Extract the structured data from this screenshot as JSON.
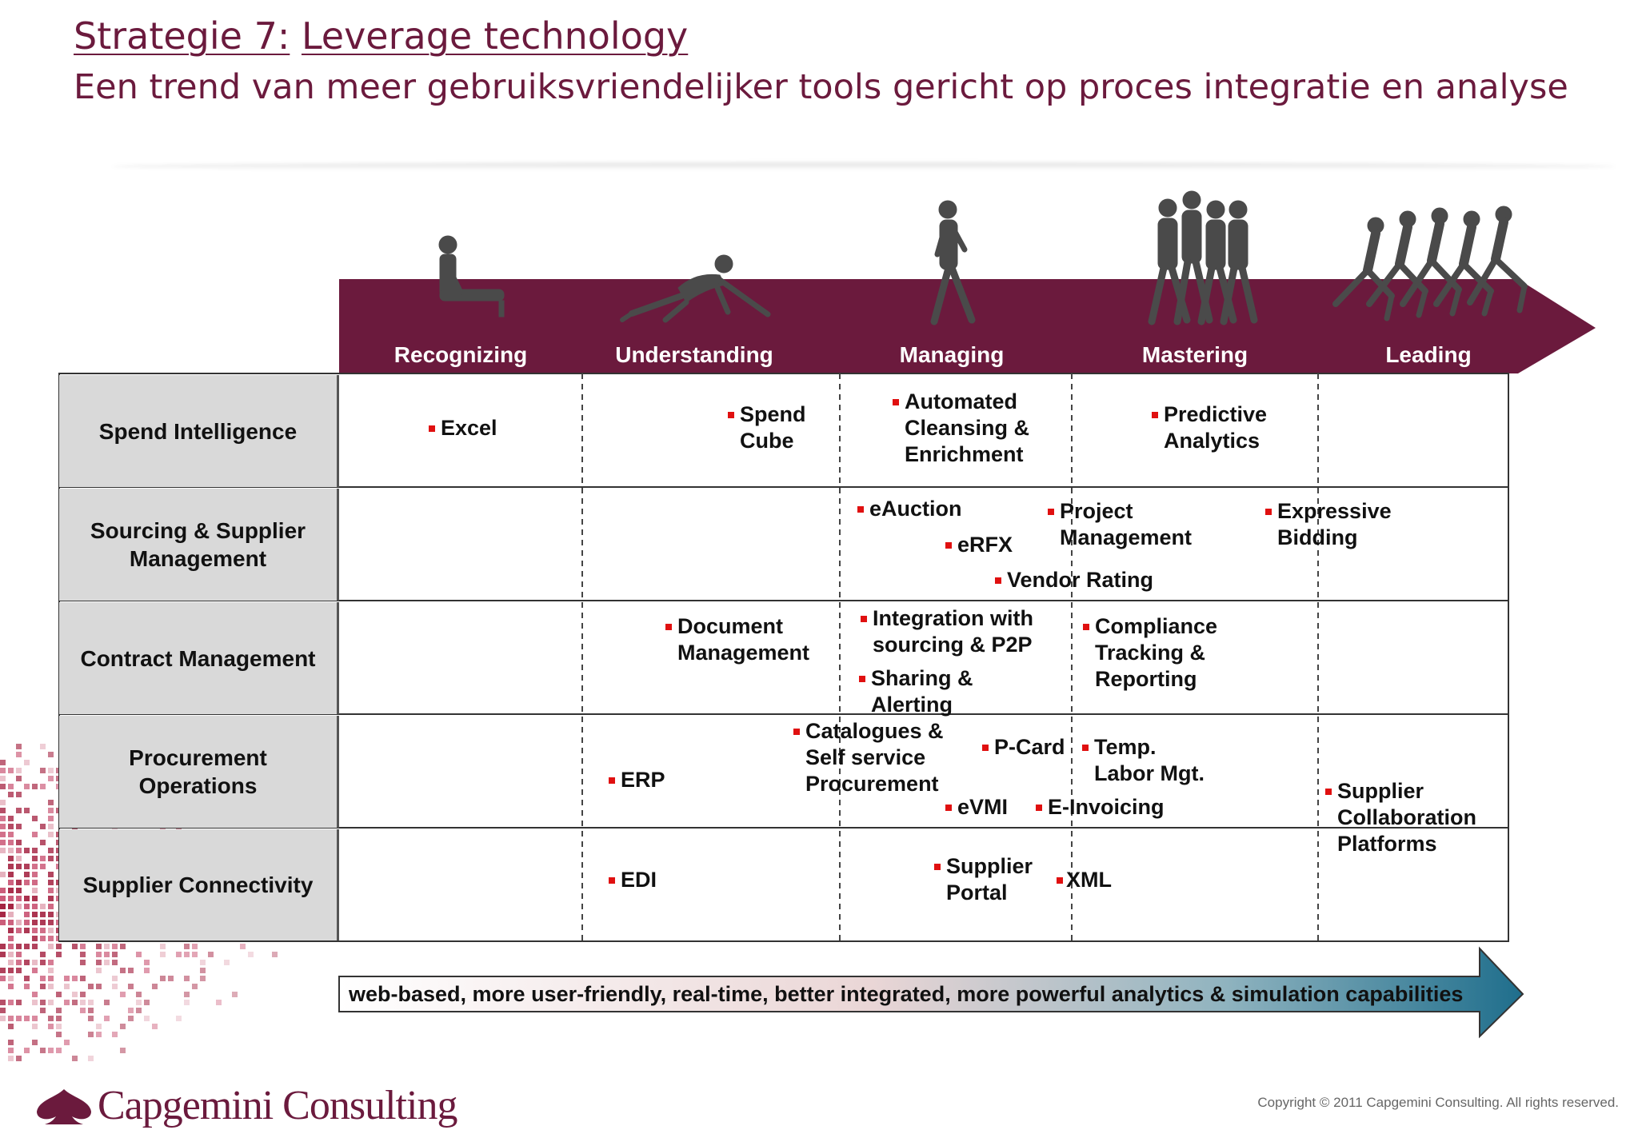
{
  "title": {
    "prefix": "Strategie 7:",
    "topic": "Leverage technology"
  },
  "subtitle": "Een trend van meer gebruiksvriendelijker tools gericht op proces integratie en analyse",
  "stages": [
    "Recognizing",
    "Understanding",
    "Managing",
    "Mastering",
    "Leading"
  ],
  "rows": [
    {
      "label": "Spend Intelligence"
    },
    {
      "label": "Sourcing & Supplier\nManagement"
    },
    {
      "label": "Contract Management"
    },
    {
      "label": "Procurement\nOperations"
    },
    {
      "label": "Supplier Connectivity"
    }
  ],
  "items": [
    "Excel",
    "Spend\nCube",
    "Automated\nCleansing &\nEnrichment",
    "Predictive\nAnalytics",
    "eAuction",
    "eRFX",
    "Project\nManagement",
    "Vendor Rating",
    "Expressive\nBidding",
    "Document\nManagement",
    "Integration with\nsourcing & P2P",
    "Sharing &\nAlerting",
    "Compliance\nTracking &\nReporting",
    "ERP",
    "Catalogues &\nSelf service\nProcurement",
    "P-Card",
    "Temp.\nLabor Mgt.",
    "eVMI",
    "E-Invoicing",
    "Supplier\nCollaboration\nPlatforms",
    "EDI",
    "Supplier\nPortal",
    "XML"
  ],
  "bottom_arrow": "web-based, more user-friendly, real-time, better integrated, more powerful analytics & simulation capabilities",
  "logo": "Capgemini Consulting",
  "copyright": "Copyright © 2011 Capgemini Consulting. All rights reserved.",
  "colors": {
    "brand": "#6b1a3d",
    "bullet": "#e01010",
    "arrow_end": "#1f6e8c"
  }
}
